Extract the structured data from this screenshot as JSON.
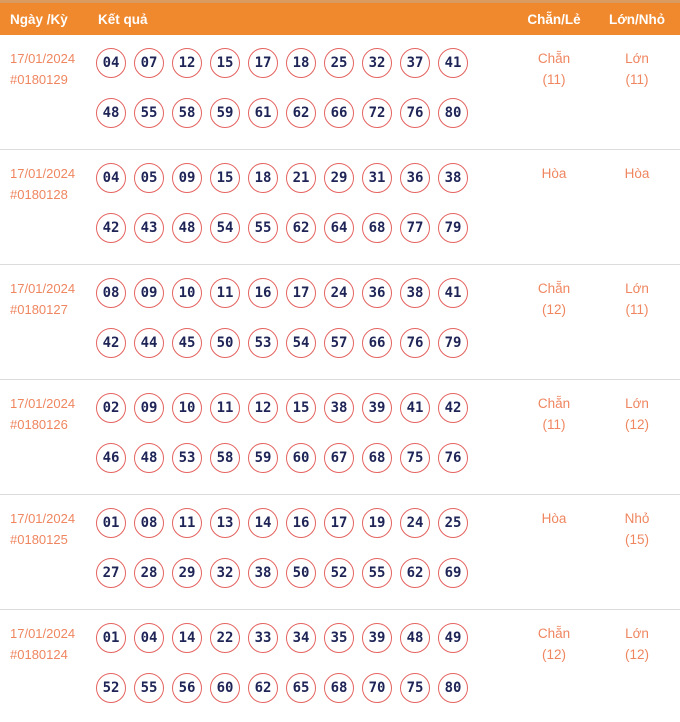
{
  "header": {
    "col_date": "Ngày /Kỳ",
    "col_result": "Kết quả",
    "col_even_odd": "Chẵn/Lẻ",
    "col_big_small": "Lớn/Nhỏ"
  },
  "colors": {
    "header_bg": "#f0882d",
    "accent_text": "#ef8660",
    "ball_border": "#e4635f",
    "ball_text": "#1e2456",
    "row_divider": "#dcdcdc"
  },
  "rows": [
    {
      "date": "17/01/2024",
      "period": "#0180129",
      "line1": [
        "04",
        "07",
        "12",
        "15",
        "17",
        "18",
        "25",
        "32",
        "37",
        "41"
      ],
      "line2": [
        "48",
        "55",
        "58",
        "59",
        "61",
        "62",
        "66",
        "72",
        "76",
        "80"
      ],
      "even_odd": "Chẵn",
      "even_odd_count": "(11)",
      "big_small": "Lớn",
      "big_small_count": "(11)"
    },
    {
      "date": "17/01/2024",
      "period": "#0180128",
      "line1": [
        "04",
        "05",
        "09",
        "15",
        "18",
        "21",
        "29",
        "31",
        "36",
        "38"
      ],
      "line2": [
        "42",
        "43",
        "48",
        "54",
        "55",
        "62",
        "64",
        "68",
        "77",
        "79"
      ],
      "even_odd": "Hòa",
      "even_odd_count": "",
      "big_small": "Hòa",
      "big_small_count": ""
    },
    {
      "date": "17/01/2024",
      "period": "#0180127",
      "line1": [
        "08",
        "09",
        "10",
        "11",
        "16",
        "17",
        "24",
        "36",
        "38",
        "41"
      ],
      "line2": [
        "42",
        "44",
        "45",
        "50",
        "53",
        "54",
        "57",
        "66",
        "76",
        "79"
      ],
      "even_odd": "Chẵn",
      "even_odd_count": "(12)",
      "big_small": "Lớn",
      "big_small_count": "(11)"
    },
    {
      "date": "17/01/2024",
      "period": "#0180126",
      "line1": [
        "02",
        "09",
        "10",
        "11",
        "12",
        "15",
        "38",
        "39",
        "41",
        "42"
      ],
      "line2": [
        "46",
        "48",
        "53",
        "58",
        "59",
        "60",
        "67",
        "68",
        "75",
        "76"
      ],
      "even_odd": "Chẵn",
      "even_odd_count": "(11)",
      "big_small": "Lớn",
      "big_small_count": "(12)"
    },
    {
      "date": "17/01/2024",
      "period": "#0180125",
      "line1": [
        "01",
        "08",
        "11",
        "13",
        "14",
        "16",
        "17",
        "19",
        "24",
        "25"
      ],
      "line2": [
        "27",
        "28",
        "29",
        "32",
        "38",
        "50",
        "52",
        "55",
        "62",
        "69"
      ],
      "even_odd": "Hòa",
      "even_odd_count": "",
      "big_small": "Nhỏ",
      "big_small_count": "(15)"
    },
    {
      "date": "17/01/2024",
      "period": "#0180124",
      "line1": [
        "01",
        "04",
        "14",
        "22",
        "33",
        "34",
        "35",
        "39",
        "48",
        "49"
      ],
      "line2": [
        "52",
        "55",
        "56",
        "60",
        "62",
        "65",
        "68",
        "70",
        "75",
        "80"
      ],
      "even_odd": "Chẵn",
      "even_odd_count": "(12)",
      "big_small": "Lớn",
      "big_small_count": "(12)"
    }
  ]
}
